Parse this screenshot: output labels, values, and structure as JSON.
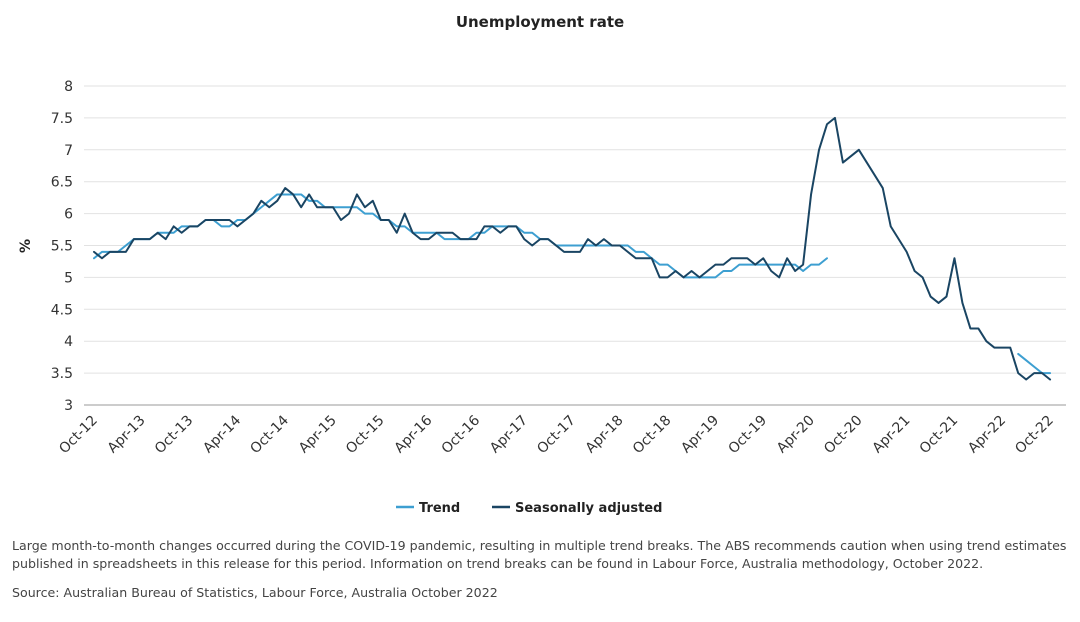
{
  "chart_data": {
    "type": "line",
    "title": "Unemployment rate",
    "ylabel": "%",
    "xlabel": "",
    "ylim": [
      3,
      8
    ],
    "yticks": [
      "3",
      "3.5",
      "4",
      "4.5",
      "5",
      "5.5",
      "6",
      "6.5",
      "7",
      "7.5",
      "8"
    ],
    "xticks": [
      "Oct-12",
      "Apr-13",
      "Oct-13",
      "Apr-14",
      "Oct-14",
      "Apr-15",
      "Oct-15",
      "Apr-16",
      "Oct-16",
      "Apr-17",
      "Oct-17",
      "Apr-18",
      "Oct-18",
      "Apr-19",
      "Oct-19",
      "Apr-20",
      "Oct-20",
      "Apr-21",
      "Oct-21",
      "Apr-22",
      "Oct-22"
    ],
    "x_start": "Oct-12",
    "x_end": "Oct-22",
    "grid": "horizontal",
    "legend_position": "bottom",
    "series": [
      {
        "name": "Trend",
        "color": "#3d9fd1",
        "values": [
          5.3,
          5.4,
          5.4,
          5.4,
          5.5,
          5.6,
          5.6,
          5.6,
          5.7,
          5.7,
          5.7,
          5.8,
          5.8,
          5.8,
          5.9,
          5.9,
          5.8,
          5.8,
          5.9,
          5.9,
          6.0,
          6.1,
          6.2,
          6.3,
          6.3,
          6.3,
          6.3,
          6.2,
          6.2,
          6.1,
          6.1,
          6.1,
          6.1,
          6.1,
          6.0,
          6.0,
          5.9,
          5.9,
          5.8,
          5.8,
          5.7,
          5.7,
          5.7,
          5.7,
          5.6,
          5.6,
          5.6,
          5.6,
          5.7,
          5.7,
          5.8,
          5.8,
          5.8,
          5.8,
          5.7,
          5.7,
          5.6,
          5.6,
          5.5,
          5.5,
          5.5,
          5.5,
          5.5,
          5.5,
          5.5,
          5.5,
          5.5,
          5.5,
          5.4,
          5.4,
          5.3,
          5.2,
          5.2,
          5.1,
          5.0,
          5.0,
          5.0,
          5.0,
          5.0,
          5.1,
          5.1,
          5.2,
          5.2,
          5.2,
          5.2,
          5.2,
          5.2,
          5.2,
          5.2,
          5.1,
          5.2,
          5.2,
          5.3,
          null,
          null,
          null,
          null,
          null,
          null,
          null,
          null,
          null,
          null,
          null,
          null,
          null,
          null,
          null,
          null,
          null,
          null,
          null,
          null,
          null,
          null,
          null,
          3.8,
          3.7,
          3.6,
          3.5,
          3.5,
          null,
          null
        ]
      },
      {
        "name": "Seasonally adjusted",
        "color": "#1a4563",
        "values": [
          5.4,
          5.3,
          5.4,
          5.4,
          5.4,
          5.6,
          5.6,
          5.6,
          5.7,
          5.6,
          5.8,
          5.7,
          5.8,
          5.8,
          5.9,
          5.9,
          5.9,
          5.9,
          5.8,
          5.9,
          6.0,
          6.2,
          6.1,
          6.2,
          6.4,
          6.3,
          6.1,
          6.3,
          6.1,
          6.1,
          6.1,
          5.9,
          6.0,
          6.3,
          6.1,
          6.2,
          5.9,
          5.9,
          5.7,
          6.0,
          5.7,
          5.6,
          5.6,
          5.7,
          5.7,
          5.7,
          5.6,
          5.6,
          5.6,
          5.8,
          5.8,
          5.7,
          5.8,
          5.8,
          5.6,
          5.5,
          5.6,
          5.6,
          5.5,
          5.4,
          5.4,
          5.4,
          5.6,
          5.5,
          5.6,
          5.5,
          5.5,
          5.4,
          5.3,
          5.3,
          5.3,
          5.0,
          5.0,
          5.1,
          5.0,
          5.1,
          5.0,
          5.1,
          5.2,
          5.2,
          5.3,
          5.3,
          5.3,
          5.2,
          5.3,
          5.1,
          5.0,
          5.3,
          5.1,
          5.2,
          6.3,
          7.0,
          7.4,
          7.5,
          6.8,
          6.9,
          7.0,
          6.8,
          6.6,
          6.4,
          5.8,
          5.6,
          5.4,
          5.1,
          5.0,
          4.7,
          4.6,
          4.7,
          5.3,
          4.6,
          4.2,
          4.2,
          4.0,
          3.9,
          3.9,
          3.9,
          3.5,
          3.4,
          3.5,
          3.5,
          3.4
        ]
      }
    ]
  },
  "footnote": "Large month-to-month changes occurred during the COVID-19 pandemic, resulting in multiple trend breaks. The ABS recommends caution when using trend estimates published in spreadsheets in this release for this period. Information on trend breaks can be found in Labour Force, Australia methodology, October 2022.",
  "source": "Source: Australian Bureau of Statistics, Labour Force, Australia October 2022"
}
